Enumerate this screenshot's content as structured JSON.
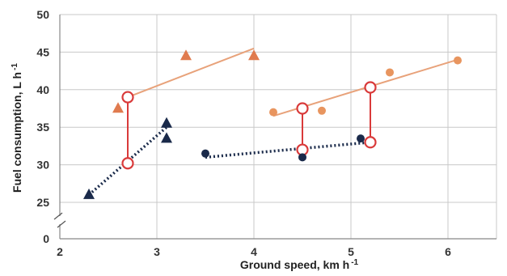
{
  "chart_data": {
    "type": "scatter",
    "xlabel": "Ground speed, km h",
    "xlabel_sup": "-1",
    "ylabel": "Fuel consumption, L h",
    "ylabel_sup": "-1",
    "xlim": [
      2,
      6.5
    ],
    "ylim": [
      0,
      50
    ],
    "x_ticks": [
      2,
      3,
      4,
      5,
      6
    ],
    "y_ticks": [
      0,
      25,
      30,
      35,
      40,
      45,
      50
    ],
    "axis_break": true,
    "grid": true,
    "legend": "none",
    "series": [
      {
        "marker": "triangle",
        "color": "#1a2a4a",
        "points": [
          [
            2.3,
            26.0
          ],
          [
            3.1,
            33.5
          ],
          [
            3.1,
            35.5
          ]
        ],
        "trend": {
          "style": "dotted",
          "x": [
            2.3,
            3.1
          ],
          "y": [
            26.0,
            35.0
          ]
        }
      },
      {
        "marker": "triangle",
        "color": "#e07b4f",
        "points": [
          [
            2.6,
            37.5
          ],
          [
            3.3,
            44.5
          ],
          [
            4.0,
            44.5
          ]
        ],
        "trend": {
          "style": "solid",
          "x": [
            2.7,
            4.0
          ],
          "y": [
            39.0,
            45.5
          ]
        }
      },
      {
        "marker": "circle",
        "color": "#1a2a4a",
        "points": [
          [
            3.5,
            31.5
          ],
          [
            4.5,
            31.0
          ],
          [
            5.1,
            33.5
          ]
        ],
        "trend": {
          "style": "dotted",
          "x": [
            3.5,
            5.2
          ],
          "y": [
            31.0,
            33.0
          ]
        }
      },
      {
        "marker": "circle",
        "color": "#e8955f",
        "points": [
          [
            4.2,
            37.0
          ],
          [
            4.7,
            37.2
          ],
          [
            5.4,
            42.3
          ],
          [
            6.1,
            43.9
          ]
        ],
        "trend": {
          "style": "solid",
          "x": [
            4.2,
            6.1
          ],
          "y": [
            36.5,
            44.0
          ]
        }
      }
    ],
    "comparisons": [
      {
        "x": 2.7,
        "y_low": 30.2,
        "y_high": 39.0
      },
      {
        "x": 4.5,
        "y_low": 32.0,
        "y_high": 37.5
      },
      {
        "x": 5.2,
        "y_low": 33.0,
        "y_high": 40.3
      }
    ],
    "colors": {
      "navy": "#1a2a4a",
      "orange": "#e8955f",
      "orange_line": "#e8a27a",
      "red": "#d93a3a",
      "grid": "#c8c8c8"
    }
  }
}
